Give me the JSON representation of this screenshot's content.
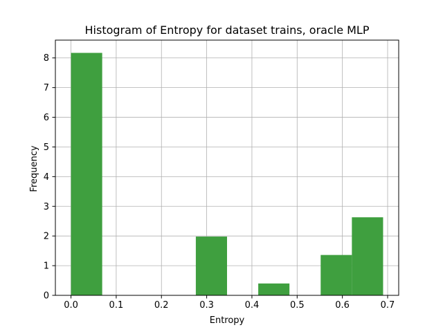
{
  "chart_data": {
    "type": "bar",
    "subtype": "histogram",
    "title": "Histogram of Entropy for dataset trains, oracle MLP",
    "xlabel": "Entropy",
    "ylabel": "Frequency",
    "xlim": [
      -0.0345,
      0.7245
    ],
    "ylim": [
      0,
      8.6
    ],
    "xticks": [
      0.0,
      0.1,
      0.2,
      0.3,
      0.4,
      0.5,
      0.6,
      0.7
    ],
    "xtick_labels": [
      "0.0",
      "0.1",
      "0.2",
      "0.3",
      "0.4",
      "0.5",
      "0.6",
      "0.7"
    ],
    "yticks": [
      0,
      1,
      2,
      3,
      4,
      5,
      6,
      7,
      8
    ],
    "ytick_labels": [
      "0",
      "1",
      "2",
      "3",
      "4",
      "5",
      "6",
      "7",
      "8"
    ],
    "grid": true,
    "bar_color": "#3f9f3f",
    "bins": [
      {
        "x0": 0.0,
        "x1": 0.069,
        "value": 8.17
      },
      {
        "x0": 0.069,
        "x1": 0.138,
        "value": 0
      },
      {
        "x0": 0.138,
        "x1": 0.207,
        "value": 0
      },
      {
        "x0": 0.207,
        "x1": 0.276,
        "value": 0
      },
      {
        "x0": 0.276,
        "x1": 0.345,
        "value": 1.98
      },
      {
        "x0": 0.345,
        "x1": 0.414,
        "value": 0
      },
      {
        "x0": 0.414,
        "x1": 0.483,
        "value": 0.4
      },
      {
        "x0": 0.483,
        "x1": 0.552,
        "value": 0
      },
      {
        "x0": 0.552,
        "x1": 0.621,
        "value": 1.36
      },
      {
        "x0": 0.621,
        "x1": 0.69,
        "value": 2.63
      }
    ]
  }
}
